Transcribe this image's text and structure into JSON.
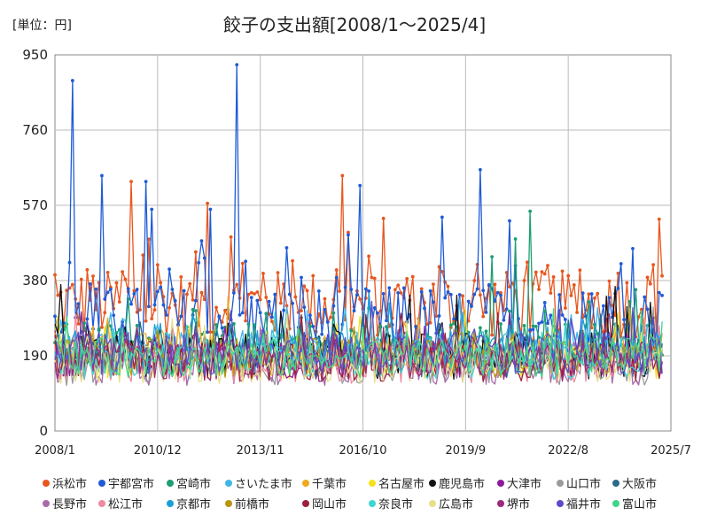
{
  "chart_data": {
    "type": "line",
    "title": "餃子の支出額[2008/1～2025/4]",
    "unit_label": "[単位：円]",
    "y_ticks": [
      0,
      190,
      380,
      570,
      760,
      950
    ],
    "ylim": [
      0,
      950
    ],
    "x_ticks": [
      "2008/1",
      "2010/12",
      "2013/11",
      "2016/10",
      "2019/9",
      "2022/8",
      "2025/7"
    ],
    "x_range": [
      "2008/1",
      "2025/7"
    ],
    "grid": true,
    "legend_position": "bottom",
    "series": [
      {
        "name": "浜松市",
        "color": "#e8561e",
        "base": 320,
        "amp": 85,
        "peaks": [
          {
            "date": "2010/3",
            "value": 630
          },
          {
            "date": "2012/5",
            "value": 575
          },
          {
            "date": "2016/3",
            "value": 645
          },
          {
            "date": "2013/1",
            "value": 490
          },
          {
            "date": "2025/3",
            "value": 535
          }
        ]
      },
      {
        "name": "宇都宮市",
        "color": "#1f5bd6",
        "base": 275,
        "amp": 90,
        "peaks": [
          {
            "date": "2008/7",
            "value": 885
          },
          {
            "date": "2009/5",
            "value": 645
          },
          {
            "date": "2010/8",
            "value": 630
          },
          {
            "date": "2010/10",
            "value": 560
          },
          {
            "date": "2013/3",
            "value": 925
          },
          {
            "date": "2012/6",
            "value": 560
          },
          {
            "date": "2016/9",
            "value": 620
          },
          {
            "date": "2020/2",
            "value": 660
          },
          {
            "date": "2019/1",
            "value": 540
          }
        ]
      },
      {
        "name": "宮崎市",
        "color": "#1e9e73",
        "base": 215,
        "amp": 60,
        "peaks": [
          {
            "date": "2021/7",
            "value": 555
          },
          {
            "date": "2021/2",
            "value": 485
          },
          {
            "date": "2020/6",
            "value": 440
          }
        ]
      },
      {
        "name": "さいたま市",
        "color": "#41b6e6",
        "base": 205,
        "amp": 50,
        "peaks": []
      },
      {
        "name": "千葉市",
        "color": "#f0a91e",
        "base": 195,
        "amp": 55,
        "peaks": []
      },
      {
        "name": "名古屋市",
        "color": "#f5e21c",
        "base": 180,
        "amp": 50,
        "peaks": []
      },
      {
        "name": "鹿児島市",
        "color": "#111111",
        "base": 190,
        "amp": 60,
        "peaks": [
          {
            "date": "2008/3",
            "value": 370
          }
        ]
      },
      {
        "name": "大津市",
        "color": "#8e1a9e",
        "base": 180,
        "amp": 50,
        "peaks": []
      },
      {
        "name": "山口市",
        "color": "#9a9a9a",
        "base": 165,
        "amp": 50,
        "peaks": []
      },
      {
        "name": "大阪市",
        "color": "#2b6a8a",
        "base": 185,
        "amp": 50,
        "peaks": []
      },
      {
        "name": "長野市",
        "color": "#a86ba8",
        "base": 165,
        "amp": 50,
        "peaks": []
      },
      {
        "name": "松江市",
        "color": "#f08aa0",
        "base": 170,
        "amp": 50,
        "peaks": []
      },
      {
        "name": "京都市",
        "color": "#1b9fd8",
        "base": 200,
        "amp": 55,
        "peaks": []
      },
      {
        "name": "前橋市",
        "color": "#b8960e",
        "base": 185,
        "amp": 50,
        "peaks": []
      },
      {
        "name": "岡山市",
        "color": "#9c1f3c",
        "base": 175,
        "amp": 50,
        "peaks": []
      },
      {
        "name": "奈良市",
        "color": "#3fd6d0",
        "base": 180,
        "amp": 50,
        "peaks": []
      },
      {
        "name": "広島市",
        "color": "#e6e08a",
        "base": 170,
        "amp": 50,
        "peaks": []
      },
      {
        "name": "堺市",
        "color": "#9c2a7a",
        "base": 175,
        "amp": 50,
        "peaks": []
      },
      {
        "name": "福井市",
        "color": "#5a4cc9",
        "base": 195,
        "amp": 55,
        "peaks": []
      },
      {
        "name": "富山市",
        "color": "#3fd68a",
        "base": 185,
        "amp": 50,
        "peaks": []
      }
    ]
  }
}
